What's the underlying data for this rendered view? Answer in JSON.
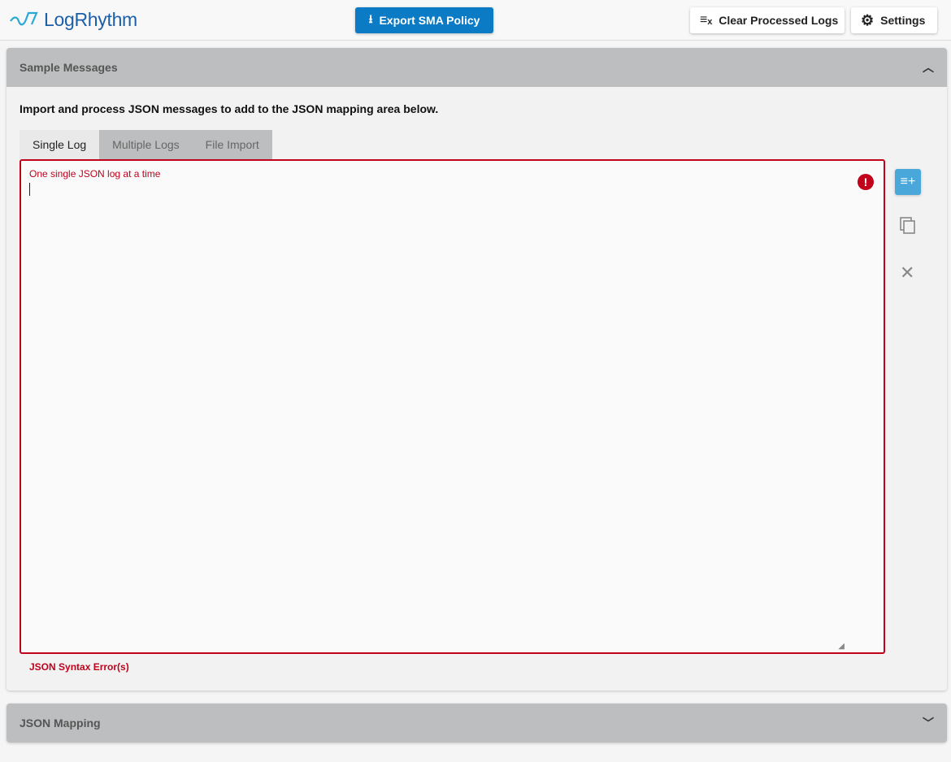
{
  "header": {
    "logo_text": "LogRhythm",
    "export_label": "Export SMA Policy",
    "clear_label": "Clear Processed Logs",
    "settings_label": "Settings"
  },
  "sample_panel": {
    "title": "Sample Messages",
    "description": "Import and process JSON messages to add to the JSON mapping area below.",
    "tabs": [
      {
        "label": "Single Log"
      },
      {
        "label": "Multiple Logs"
      },
      {
        "label": "File Import"
      }
    ],
    "editor": {
      "placeholder": "One single JSON log at a time",
      "value": "",
      "error": "JSON Syntax Error(s)"
    },
    "actions": [
      "add-to-list-icon",
      "copy-icon",
      "close-icon"
    ]
  },
  "mapping_panel": {
    "title": "JSON Mapping"
  },
  "colors": {
    "accent": "#0a7bc4",
    "error": "#c0021b",
    "header": "#bdbebf"
  }
}
